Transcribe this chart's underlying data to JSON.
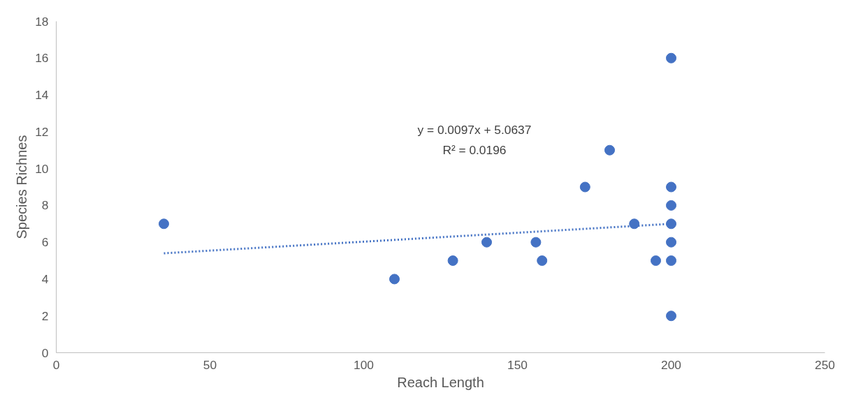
{
  "chart_data": {
    "type": "scatter",
    "xlabel": "Reach Length",
    "ylabel": "Species Richnes",
    "xlim": [
      0,
      250
    ],
    "xticks": [
      0,
      50,
      100,
      150,
      200,
      250
    ],
    "ylim": [
      0,
      18
    ],
    "yticks": [
      0,
      2,
      4,
      6,
      8,
      10,
      12,
      14,
      16,
      18
    ],
    "grid": false,
    "series": [
      {
        "marker": "circle",
        "color": "#4472c4",
        "x": [
          35,
          110,
          129,
          140,
          156,
          158,
          172,
          180,
          188,
          195,
          200,
          200,
          200,
          200,
          200,
          200,
          200
        ],
        "values": [
          7,
          4,
          5,
          6,
          6,
          5,
          9,
          11,
          7,
          5,
          16,
          9,
          8,
          7,
          6,
          5,
          2
        ]
      },
      {
        "type": "line",
        "line_style": "dotted",
        "color": "#4472c4",
        "x": [
          35,
          200
        ],
        "values": [
          5.4,
          7.0
        ]
      }
    ],
    "annotations": [
      "y = 0.0097x + 5.0637",
      "R² = 0.0196"
    ]
  }
}
